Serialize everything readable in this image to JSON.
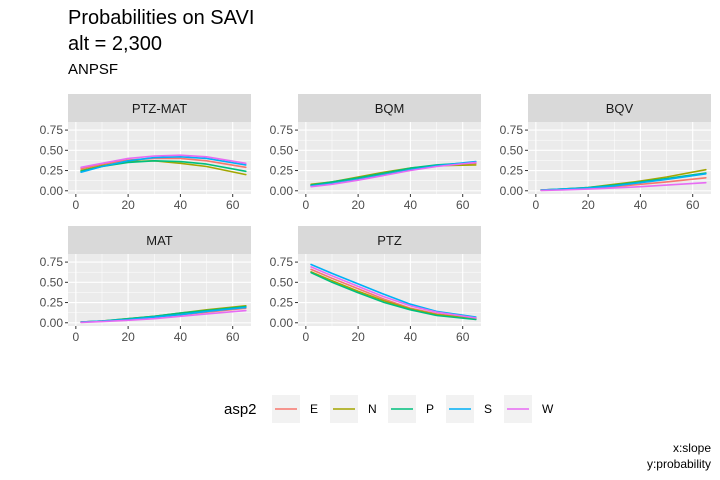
{
  "title_line1": "Probabilities on SAVI",
  "title_line2": "alt = 2,300",
  "subtitle": "ANPSF",
  "caption_line1": "x:slope",
  "caption_line2": "y:probability",
  "chart_data": {
    "type": "line",
    "facet_by": "outcome",
    "x_ticks": [
      0,
      20,
      40,
      60
    ],
    "y_ticks": [
      0.0,
      0.25,
      0.5,
      0.75
    ],
    "y_tick_labels": [
      "0.00",
      "0.25",
      "0.50",
      "0.75"
    ],
    "xlim": [
      -3,
      67
    ],
    "ylim": [
      -0.04,
      0.85
    ],
    "grid": true,
    "legend": {
      "title": "asp2",
      "position": "bottom",
      "entries": [
        {
          "name": "E",
          "color": "#F8766D"
        },
        {
          "name": "N",
          "color": "#A3A500"
        },
        {
          "name": "P",
          "color": "#00BF7D"
        },
        {
          "name": "S",
          "color": "#00B0F6"
        },
        {
          "name": "W",
          "color": "#E76BF3"
        }
      ]
    },
    "x": [
      2,
      10,
      20,
      30,
      40,
      50,
      65
    ],
    "panels": [
      {
        "label": "PTZ-MAT",
        "series": [
          {
            "name": "E",
            "values": [
              0.27,
              0.33,
              0.38,
              0.4,
              0.4,
              0.37,
              0.29
            ]
          },
          {
            "name": "N",
            "values": [
              0.25,
              0.31,
              0.36,
              0.37,
              0.34,
              0.3,
              0.2
            ]
          },
          {
            "name": "P",
            "values": [
              0.24,
              0.3,
              0.35,
              0.37,
              0.36,
              0.33,
              0.24
            ]
          },
          {
            "name": "S",
            "values": [
              0.23,
              0.3,
              0.37,
              0.41,
              0.42,
              0.4,
              0.32
            ]
          },
          {
            "name": "W",
            "values": [
              0.29,
              0.34,
              0.4,
              0.43,
              0.44,
              0.42,
              0.34
            ]
          }
        ]
      },
      {
        "label": "BQM",
        "series": [
          {
            "name": "E",
            "values": [
              0.07,
              0.1,
              0.15,
              0.21,
              0.27,
              0.31,
              0.34
            ]
          },
          {
            "name": "N",
            "values": [
              0.08,
              0.11,
              0.17,
              0.23,
              0.28,
              0.31,
              0.32
            ]
          },
          {
            "name": "P",
            "values": [
              0.07,
              0.11,
              0.16,
              0.22,
              0.28,
              0.32,
              0.35
            ]
          },
          {
            "name": "S",
            "values": [
              0.06,
              0.09,
              0.14,
              0.2,
              0.26,
              0.31,
              0.36
            ]
          },
          {
            "name": "W",
            "values": [
              0.05,
              0.08,
              0.13,
              0.19,
              0.25,
              0.3,
              0.35
            ]
          }
        ]
      },
      {
        "label": "BQV",
        "series": [
          {
            "name": "E",
            "values": [
              0.01,
              0.015,
              0.03,
              0.05,
              0.08,
              0.11,
              0.16
            ]
          },
          {
            "name": "N",
            "values": [
              0.01,
              0.02,
              0.04,
              0.08,
              0.12,
              0.17,
              0.26
            ]
          },
          {
            "name": "P",
            "values": [
              0.01,
              0.02,
              0.04,
              0.07,
              0.11,
              0.15,
              0.22
            ]
          },
          {
            "name": "S",
            "values": [
              0.01,
              0.02,
              0.035,
              0.06,
              0.1,
              0.14,
              0.21
            ]
          },
          {
            "name": "W",
            "values": [
              0.005,
              0.01,
              0.02,
              0.035,
              0.05,
              0.07,
              0.1
            ]
          }
        ]
      },
      {
        "label": "MAT",
        "series": [
          {
            "name": "E",
            "values": [
              0.01,
              0.02,
              0.04,
              0.07,
              0.1,
              0.13,
              0.18
            ]
          },
          {
            "name": "N",
            "values": [
              0.01,
              0.02,
              0.05,
              0.08,
              0.12,
              0.16,
              0.21
            ]
          },
          {
            "name": "P",
            "values": [
              0.01,
              0.02,
              0.05,
              0.08,
              0.12,
              0.15,
              0.2
            ]
          },
          {
            "name": "S",
            "values": [
              0.01,
              0.02,
              0.04,
              0.07,
              0.1,
              0.14,
              0.19
            ]
          },
          {
            "name": "W",
            "values": [
              0.005,
              0.015,
              0.03,
              0.05,
              0.08,
              0.11,
              0.15
            ]
          }
        ]
      },
      {
        "label": "PTZ",
        "series": [
          {
            "name": "E",
            "values": [
              0.66,
              0.55,
              0.42,
              0.29,
              0.18,
              0.11,
              0.05
            ]
          },
          {
            "name": "N",
            "values": [
              0.63,
              0.52,
              0.39,
              0.27,
              0.17,
              0.1,
              0.05
            ]
          },
          {
            "name": "P",
            "values": [
              0.62,
              0.5,
              0.37,
              0.25,
              0.16,
              0.09,
              0.04
            ]
          },
          {
            "name": "S",
            "values": [
              0.72,
              0.61,
              0.48,
              0.35,
              0.23,
              0.14,
              0.07
            ]
          },
          {
            "name": "W",
            "values": [
              0.69,
              0.58,
              0.45,
              0.32,
              0.21,
              0.13,
              0.06
            ]
          }
        ]
      }
    ]
  }
}
